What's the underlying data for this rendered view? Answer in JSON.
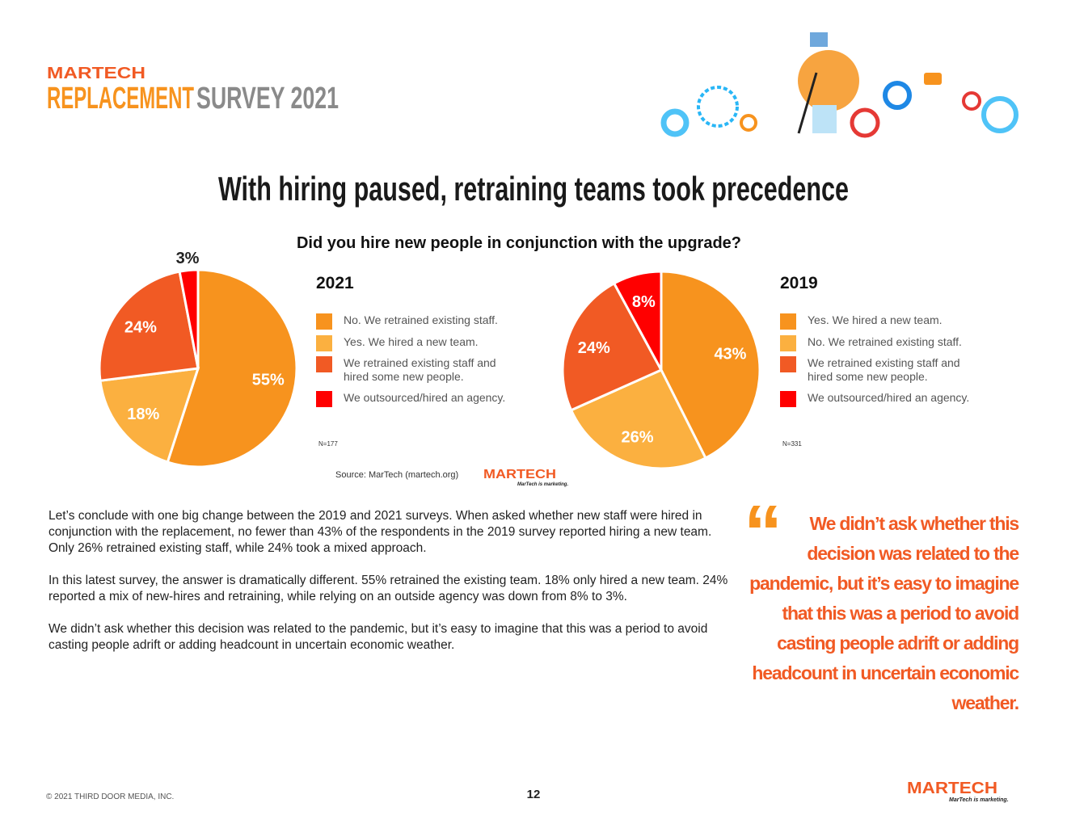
{
  "header": {
    "brand": "MARTECH",
    "title_part1": "REPLACEMENT",
    "title_part2": "SURVEY 2021"
  },
  "title": "With hiring paused, retraining teams took precedence",
  "question": "Did you hire new people in conjunction with the upgrade?",
  "chart_data": [
    {
      "type": "pie",
      "title": "2021",
      "categories": [
        "No. We retrained existing staff.",
        "Yes. We hired a new team.",
        "We retrained existing staff and hired some new people.",
        "We outsourced/hired an agency."
      ],
      "values": [
        55,
        18,
        24,
        3
      ],
      "value_labels": [
        "55%",
        "18%",
        "24%",
        "3%"
      ],
      "colors": [
        "#f7931e",
        "#fbb040",
        "#f15a24",
        "#ff0000"
      ],
      "note": "N=177"
    },
    {
      "type": "pie",
      "title": "2019",
      "categories": [
        "Yes. We hired a new team.",
        "No. We retrained existing staff.",
        "We retrained existing staff and hired some new people.",
        "We outsourced/hired an agency."
      ],
      "values": [
        43,
        26,
        24,
        8
      ],
      "value_labels": [
        "43%",
        "26%",
        "24%",
        "8%"
      ],
      "colors": [
        "#f7931e",
        "#fbb040",
        "#f15a24",
        "#ff0000"
      ],
      "note": "N=331"
    }
  ],
  "source": "Source: MarTech (martech.org)",
  "source_logo": {
    "brand": "MARTECH",
    "tagline": "MarTech is marketing."
  },
  "body": [
    "Let’s conclude with one big change between the 2019 and 2021 surveys. When asked whether new staff were hired in conjunction with the replacement, no fewer than 43% of the respondents in the 2019 survey reported hiring a new team. Only 26% retrained existing staff, while 24% took a mixed approach.",
    "In this latest survey, the answer is dramatically different. 55% retrained the existing team. 18% only hired a new team. 24% reported a mix of new-hires and retraining, while relying on an outside agency was down from 8% to 3%.",
    "We didn’t ask whether this decision was related to the pandemic, but it’s easy to imagine that this was a period to avoid casting people adrift or adding headcount in uncertain economic weather."
  ],
  "quote": "We didn’t ask whether this decision was related to the pandemic, but it’s easy to imagine that this was a period to avoid casting people adrift or adding headcount in uncertain economic weather.",
  "footer": {
    "copyright": "© 2021 THIRD DOOR MEDIA, INC.",
    "page": "12",
    "brand": "MARTECH",
    "tagline": "MarTech is marketing."
  }
}
